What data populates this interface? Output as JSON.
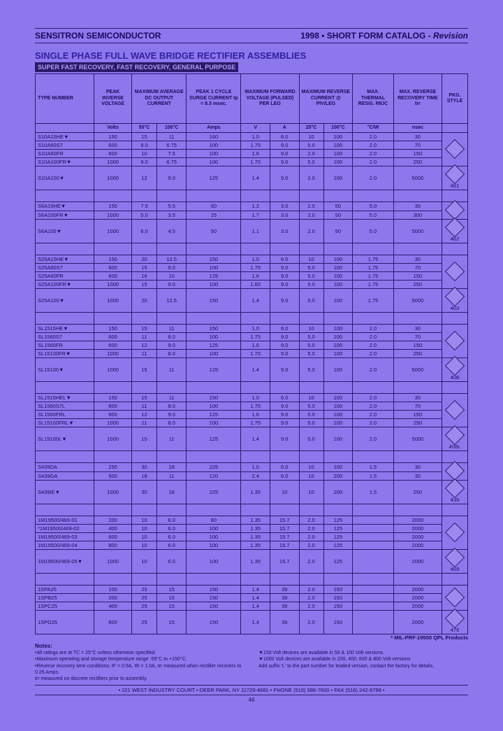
{
  "header": {
    "company": "SENSITRON SEMICONDUCTOR",
    "catalog": "1998 • SHORT FORM CATALOG - ",
    "revision": "Revision"
  },
  "title": "SINGLE PHASE FULL WAVE BRIDGE RECTIFIER ASSEMBLIES",
  "subtitle": "SUPER FAST RECOVERY, FAST RECOVERY, GENERAL PURPOSE",
  "columns": [
    "TYPE NUMBER",
    "PEAK INVERSE VOLTAGE",
    "MAXIMUM AVERAGE DC OUTPUT CURRENT",
    "PEAK 1 CYCLE SURGE CURRENT tp = 8.3 msec.",
    "MAXIMUM FORWARD VOLTAGE (PULSED) PER LEG",
    "MAXIMUM REVERSE CURRENT @ PIV/LEG",
    "MAX. THERMAL RESIS. RθJC",
    "MAX. REVERSE RECOVERY TIME trr",
    "PKG. STYLE"
  ],
  "subheaders": [
    "",
    "",
    "Amps",
    "",
    "",
    "mAmps",
    "",
    "",
    ""
  ],
  "units": [
    "",
    "Volts",
    "55°C",
    "100°C",
    "Amps",
    "V",
    "A",
    "25°C",
    "100°C",
    "°C/W",
    "nsec",
    ""
  ],
  "groups": [
    {
      "rows": [
        [
          "S10A15HE▼",
          "150",
          "15",
          "11",
          "160",
          "1.0",
          "6.0",
          "10",
          "100",
          "2.0",
          "30",
          ""
        ],
        [
          "S10A60S7",
          "600",
          "9.0",
          "6.75",
          "100",
          "1.75",
          "9.0",
          "5.0",
          "100",
          "2.0",
          "70",
          ""
        ],
        [
          "S10A60FR",
          "600",
          "10",
          "7.5",
          "100",
          "1.6",
          "9.0",
          "2.0",
          "100",
          "2.0",
          "150",
          ""
        ],
        [
          "S10A100FR▼",
          "1000",
          "9.0",
          "6.75",
          "100",
          "1.75",
          "9.0",
          "5.0",
          "100",
          "2.0",
          "250",
          ""
        ],
        [
          "S10A100▼",
          "1000",
          "12",
          "9.0",
          "125",
          "1.4",
          "9.0",
          "2.0",
          "100",
          "2.0",
          "5000",
          "461"
        ]
      ]
    },
    {
      "rows": [
        [
          "S6A15HE▼",
          "150",
          "7.5",
          "5.5",
          "60",
          "1.2",
          "3.0",
          "2.0",
          "50",
          "5.0",
          "30",
          ""
        ],
        [
          "S6A100FR▼",
          "1000",
          "5.0",
          "3.5",
          "25",
          "1.7",
          "3.0",
          "2.0",
          "50",
          "5.0",
          "300",
          ""
        ],
        [
          "S6A100▼",
          "1000",
          "6.0",
          "4.5",
          "50",
          "1.1",
          "3.0",
          "2.0",
          "50",
          "5.0",
          "5000",
          "462"
        ]
      ]
    },
    {
      "rows": [
        [
          "S25A15HE▼",
          "150",
          "20",
          "12.5",
          "150",
          "1.0",
          "6.0",
          "10",
          "100",
          "1.75",
          "30",
          ""
        ],
        [
          "S25A60S7",
          "600",
          "15",
          "9.0",
          "100",
          "1.75",
          "9.0",
          "5.0",
          "100",
          "1.75",
          "70",
          ""
        ],
        [
          "S25A60FR",
          "600",
          "16",
          "10",
          "125",
          "1.6",
          "9.0",
          "5.0",
          "100",
          "1.75",
          "150",
          ""
        ],
        [
          "S25A100FR▼",
          "1000",
          "15",
          "9.0",
          "100",
          "1.65",
          "9.0",
          "5.0",
          "100",
          "1.75",
          "250",
          ""
        ],
        [
          "S25A100▼",
          "1000",
          "20",
          "12.5",
          "150",
          "1.4",
          "9.0",
          "5.0",
          "100",
          "1.75",
          "5000",
          "403"
        ]
      ]
    },
    {
      "rows": [
        [
          "SL1515HE▼",
          "150",
          "15",
          "11",
          "150",
          "1.0",
          "6.0",
          "10",
          "100",
          "2.0",
          "30",
          ""
        ],
        [
          "SL1560S7",
          "600",
          "11",
          "8.0",
          "100",
          "1.75",
          "9.0",
          "5.0",
          "100",
          "2.0",
          "70",
          ""
        ],
        [
          "SL1560FR",
          "600",
          "12",
          "9.0",
          "125",
          "1.6",
          "9.0",
          "5.0",
          "100",
          "2.0",
          "150",
          ""
        ],
        [
          "SL15100FR▼",
          "1000",
          "11",
          "8.0",
          "100",
          "1.75",
          "9.0",
          "5.0",
          "100",
          "2.0",
          "250",
          ""
        ],
        [
          "SL15100▼",
          "1000",
          "15",
          "11",
          "125",
          "1.4",
          "9.0",
          "5.0",
          "100",
          "2.0",
          "5000",
          "408"
        ]
      ]
    },
    {
      "rows": [
        [
          "SL1515HEL▼",
          "150",
          "15",
          "11",
          "150",
          "1.0",
          "6.0",
          "10",
          "100",
          "2.0",
          "30",
          ""
        ],
        [
          "SL1560S7L",
          "600",
          "11",
          "8.0",
          "100",
          "1.75",
          "9.0",
          "5.0",
          "100",
          "2.0",
          "70",
          ""
        ],
        [
          "SL1560FRL",
          "600",
          "12",
          "9.0",
          "125",
          "1.6",
          "9.0",
          "5.0",
          "100",
          "2.0",
          "150",
          ""
        ],
        [
          "SL15100FRL▼",
          "1000",
          "11",
          "8.0",
          "100",
          "1.75",
          "9.0",
          "5.0",
          "100",
          "2.0",
          "250",
          ""
        ],
        [
          "SL15100L▼",
          "1000",
          "15",
          "11",
          "125",
          "1.4",
          "9.0",
          "5.0",
          "100",
          "2.0",
          "5000",
          "408L"
        ]
      ]
    },
    {
      "rows": [
        [
          "S439DA",
          "250",
          "30",
          "18",
          "225",
          "1.0",
          "6.0",
          "10",
          "100",
          "1.5",
          "30",
          ""
        ],
        [
          "S439GA",
          "500",
          "18",
          "11",
          "120",
          "2.4",
          "6.0",
          "10",
          "200",
          "1.5",
          "30",
          ""
        ],
        [
          "S439IE▼",
          "1000",
          "30",
          "18",
          "225",
          "1.35",
          "10",
          "10",
          "200",
          "1.5",
          "250",
          "439"
        ]
      ]
    },
    {
      "rows": [
        [
          "1M19500/469-01",
          "200",
          "10",
          "6.0",
          "80",
          "1.35",
          "15.7",
          "2.0",
          "125",
          "",
          "2000",
          ""
        ],
        [
          "*1M19500/469-02",
          "400",
          "10",
          "6.0",
          "100",
          "1.35",
          "15.7",
          "2.0",
          "125",
          "",
          "2000",
          ""
        ],
        [
          "1M19500/469-03",
          "600",
          "10",
          "6.0",
          "100",
          "1.35",
          "15.7",
          "2.0",
          "125",
          "",
          "2000",
          ""
        ],
        [
          "1M19500/469-04",
          "800",
          "10",
          "6.0",
          "100",
          "1.35",
          "15.7",
          "2.0",
          "125",
          "",
          "2000",
          ""
        ],
        [
          "1M19500/469-05▼",
          "1000",
          "10",
          "6.0",
          "100",
          "1.35",
          "15.7",
          "2.0",
          "125",
          "",
          "2000",
          "469"
        ]
      ]
    },
    {
      "rows": [
        [
          "1SPA25",
          "100",
          "25",
          "15",
          "150",
          "1.4",
          "39",
          "2.0",
          "150",
          "",
          "2000",
          ""
        ],
        [
          "1SPB25",
          "200",
          "25",
          "15",
          "150",
          "1.4",
          "39",
          "2.0",
          "150",
          "",
          "2000",
          ""
        ],
        [
          "1SPC25",
          "400",
          "25",
          "15",
          "150",
          "1.4",
          "39",
          "2.0",
          "150",
          "",
          "2000",
          ""
        ],
        [
          "1SPD25",
          "600",
          "25",
          "15",
          "150",
          "1.4",
          "39",
          "2.0",
          "150",
          "",
          "2000",
          "476"
        ]
      ]
    }
  ],
  "qpl": "* MIL-PRF-19500 QPL Products",
  "notes": {
    "heading": "Notes:",
    "lines": [
      "•All ratings are at TC = 25°C unless otherwise specified.",
      "•Maximum operating and storage temperature range -55°C to +150°C.",
      "•Reverse recovery time conditions: IF = 0.5A, IR = 1.0A, trr measured when rectifier recovers to 0.25 Amps.",
      "trr measured on discrete rectifiers prior to assembly."
    ],
    "right": [
      "▼150 Volt devices are available in 50 & 100 Volt versions",
      "▼1000 Volt devices are available in 200, 400, 600 & 800 Volt versions",
      "Add suffix 'L' to the part number for leaded version, contact the factory for details."
    ]
  },
  "footer": "• 221 WEST INDUSTRY COURT • DEER PARK, NY 11729-4681 • PHONE (516) 586-7600 • FAX (516) 242-9798 •",
  "pagenum": "46"
}
